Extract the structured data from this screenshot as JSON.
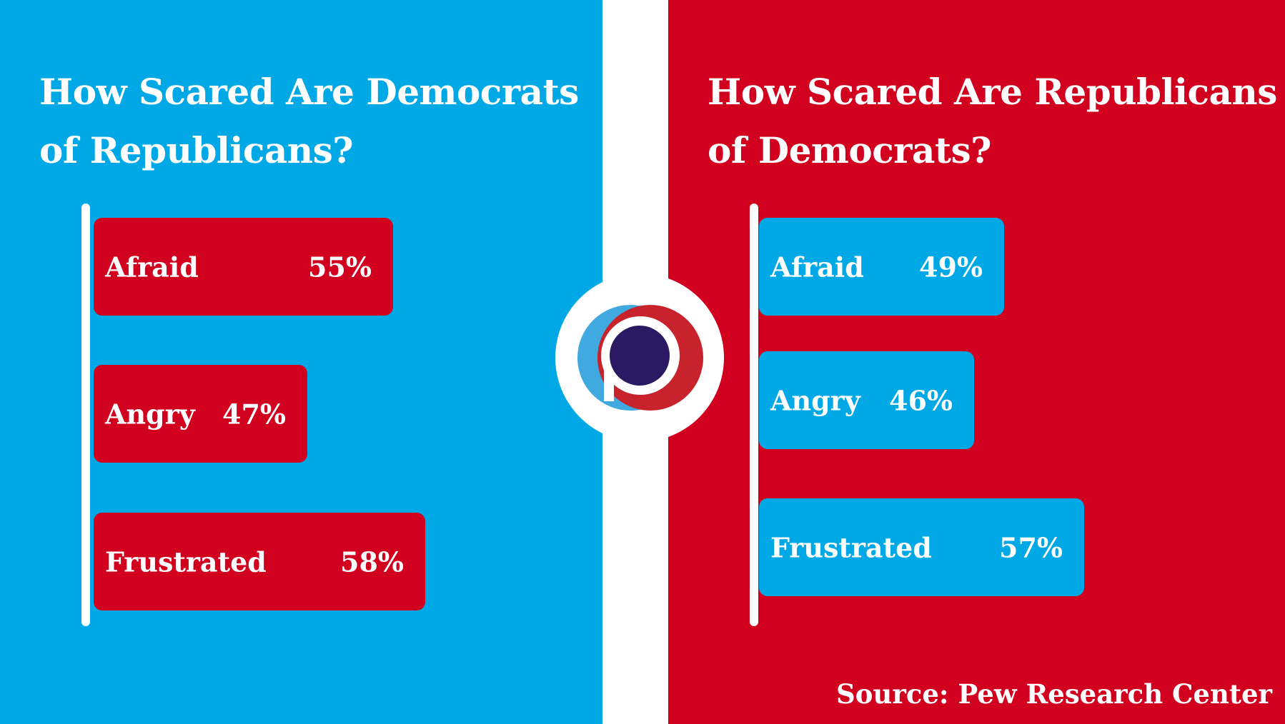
{
  "colors": {
    "blue": "#00a8e6",
    "red": "#d1001f",
    "white": "#ffffff",
    "logo_navy": "#2a1a63",
    "logo_light_blue": "#3fa9e0",
    "logo_red": "#c8232c"
  },
  "logo_icon": "p-logo-icon",
  "source": "Source: Pew Research Center",
  "chart_data": [
    {
      "type": "bar",
      "orientation": "horizontal",
      "title": "How Scared Are Democrats of Republicans?",
      "categories": [
        "Afraid",
        "Angry",
        "Frustrated"
      ],
      "values": [
        55,
        47,
        58
      ],
      "value_labels": [
        "55%",
        "47%",
        "58%"
      ],
      "unit": "%",
      "bar_color": "#d1001f",
      "background": "#00a8e6",
      "grid": false
    },
    {
      "type": "bar",
      "orientation": "horizontal",
      "title": "How Scared Are Republicans of Democrats?",
      "categories": [
        "Afraid",
        "Angry",
        "Frustrated"
      ],
      "values": [
        49,
        46,
        57
      ],
      "value_labels": [
        "49%",
        "46%",
        "57%"
      ],
      "unit": "%",
      "bar_color": "#00a8e6",
      "background": "#d1001f",
      "grid": false
    }
  ]
}
